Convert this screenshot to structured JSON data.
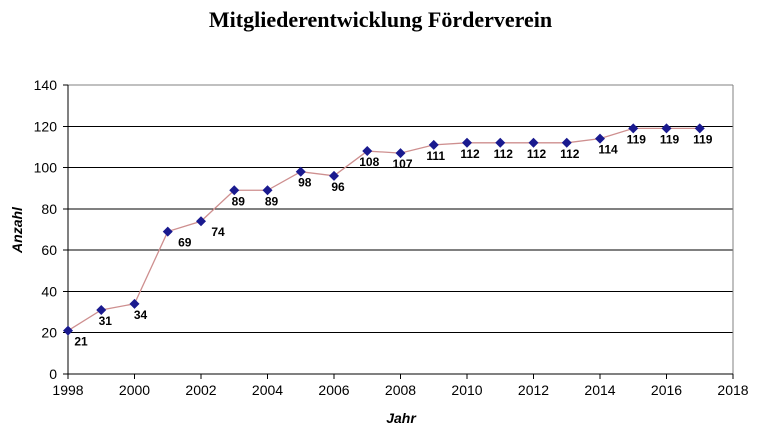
{
  "chart_data": {
    "type": "line",
    "title": "Mitgliederentwicklung Förderverein",
    "xlabel": "Jahr",
    "ylabel": "Anzahl",
    "x": [
      1998,
      1999,
      2000,
      2001,
      2002,
      2003,
      2004,
      2005,
      2006,
      2007,
      2008,
      2009,
      2010,
      2011,
      2012,
      2013,
      2014,
      2015,
      2016,
      2017
    ],
    "values": [
      21,
      31,
      34,
      69,
      74,
      89,
      89,
      98,
      96,
      108,
      107,
      111,
      112,
      112,
      112,
      112,
      114,
      119,
      119,
      119
    ],
    "xlim": [
      1998,
      2018
    ],
    "x_tick_step": 2,
    "ylim": [
      0,
      140
    ],
    "y_tick_step": 20,
    "grid": true,
    "legend": "none",
    "marker_shape": "diamond",
    "data_labels": true,
    "colors": {
      "line": "#CE8F8F",
      "marker": "#1A1A8F",
      "gridline": "#000000",
      "plot_border": "#808080",
      "axis": "#000000",
      "text": "#000000"
    }
  }
}
